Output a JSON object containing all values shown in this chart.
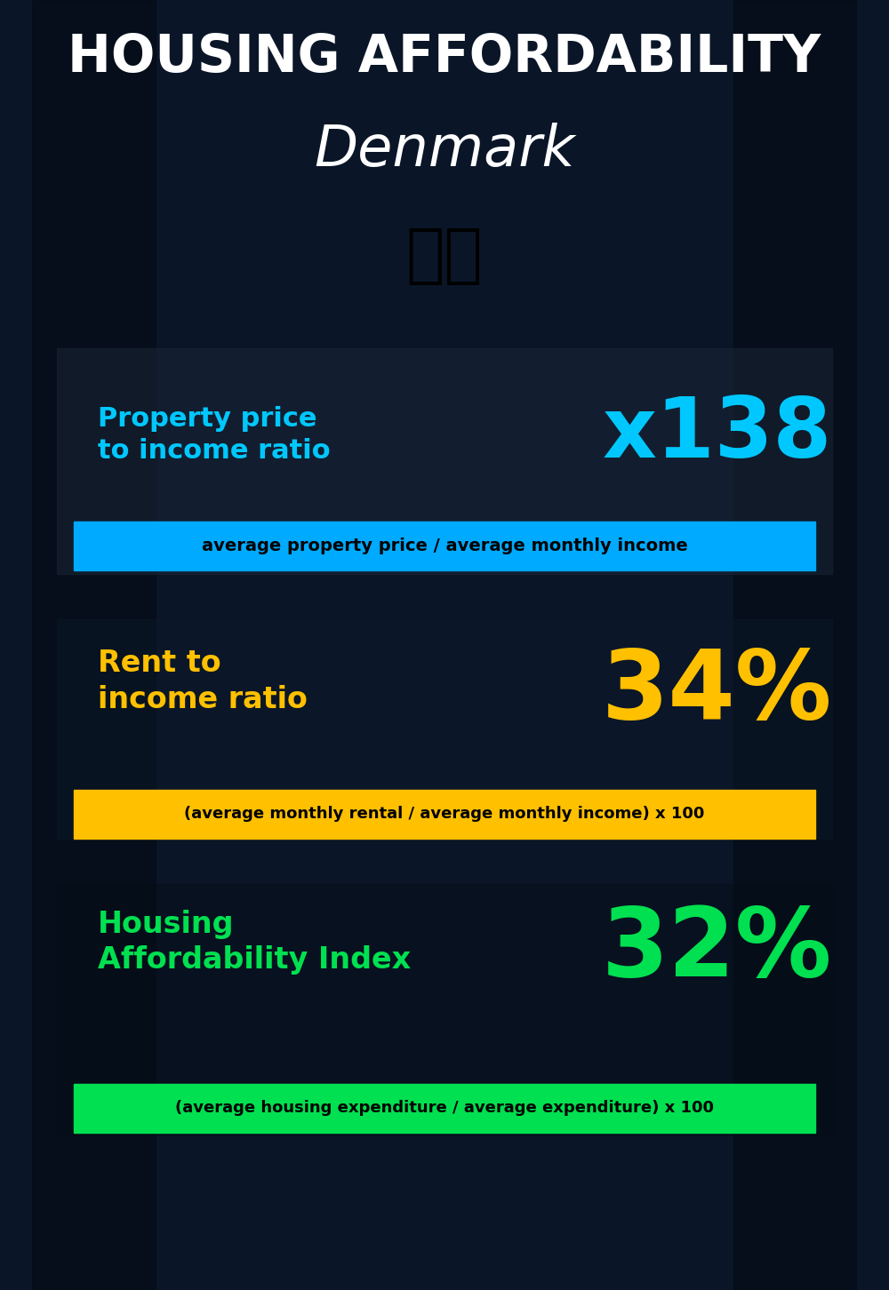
{
  "title_line1": "HOUSING AFFORDABILITY",
  "title_line2": "Denmark",
  "flag_emoji": "🇩🇰",
  "bg_color": "#0a1628",
  "title_color": "#ffffff",
  "country_color": "#ffffff",
  "metric1_label": "Property price\nto income ratio",
  "metric1_value": "x138",
  "metric1_label_color": "#00c8ff",
  "metric1_value_color": "#00c8ff",
  "metric1_sub": "average property price / average monthly income",
  "metric1_sub_bg": "#00aaff",
  "metric1_sub_color": "#000000",
  "metric2_label": "Rent to\nincome ratio",
  "metric2_value": "34%",
  "metric2_label_color": "#ffc000",
  "metric2_value_color": "#ffc000",
  "metric2_sub": "(average monthly rental / average monthly income) x 100",
  "metric2_sub_bg": "#ffc000",
  "metric2_sub_color": "#000000",
  "metric3_label": "Housing\nAffordability Index",
  "metric3_value": "32%",
  "metric3_label_color": "#00e050",
  "metric3_value_color": "#00e050",
  "metric3_sub": "(average housing expenditure / average expenditure) x 100",
  "metric3_sub_bg": "#00e050",
  "metric3_sub_color": "#000000"
}
